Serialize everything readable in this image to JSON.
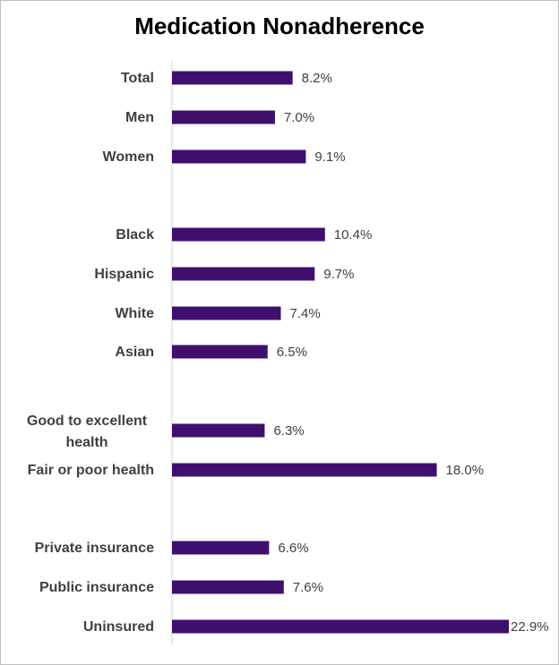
{
  "chart_data": {
    "type": "bar",
    "orientation": "horizontal",
    "title": "Medication Nonadherence",
    "xlabel": "",
    "ylabel": "",
    "categories": [
      "Total",
      "Men",
      "Women",
      "Black",
      "Hispanic",
      "White",
      "Asian",
      "Good to excellent health",
      "Fair or poor health",
      "Private insurance",
      "Public insurance",
      "Uninsured"
    ],
    "values": [
      8.2,
      7.0,
      9.1,
      10.4,
      9.7,
      7.4,
      6.5,
      6.3,
      18.0,
      6.6,
      7.6,
      22.9
    ],
    "value_labels": [
      "8.2%",
      "7.0%",
      "9.1%",
      "10.4%",
      "9.7%",
      "7.4%",
      "6.5%",
      "6.3%",
      "18.0%",
      "6.6%",
      "7.6%",
      "22.9%"
    ],
    "xlim": [
      0,
      22.9
    ],
    "grid": false,
    "legend": "none",
    "bar_color": "#3f0f6e"
  }
}
